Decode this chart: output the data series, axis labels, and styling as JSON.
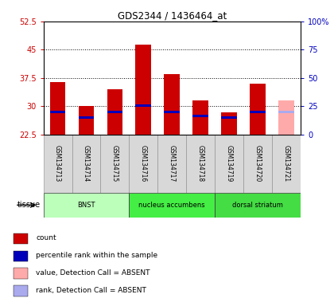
{
  "title": "GDS2344 / 1436464_at",
  "samples": [
    "GSM134713",
    "GSM134714",
    "GSM134715",
    "GSM134716",
    "GSM134717",
    "GSM134718",
    "GSM134719",
    "GSM134720",
    "GSM134721"
  ],
  "count_values": [
    36.5,
    30.1,
    34.5,
    46.3,
    38.5,
    31.5,
    28.5,
    36.0,
    null
  ],
  "rank_values": [
    28.5,
    27.0,
    28.5,
    30.2,
    28.5,
    27.5,
    27.0,
    28.5,
    null
  ],
  "absent_value": [
    null,
    null,
    null,
    null,
    null,
    null,
    null,
    null,
    31.5
  ],
  "absent_rank": [
    null,
    null,
    null,
    null,
    null,
    null,
    null,
    null,
    28.5
  ],
  "ylim_left": [
    22.5,
    52.5
  ],
  "yticks_left": [
    22.5,
    30,
    37.5,
    45,
    52.5
  ],
  "yticks_right": [
    0,
    25,
    50,
    75,
    100
  ],
  "ytick_labels_left": [
    "22.5",
    "30",
    "37.5",
    "45",
    "52.5"
  ],
  "ytick_labels_right": [
    "0",
    "25",
    "50",
    "75",
    "100%"
  ],
  "tissue_groups": [
    {
      "label": "BNST",
      "start": 0,
      "end": 3,
      "color": "#bbffbb"
    },
    {
      "label": "nucleus accumbens",
      "start": 3,
      "end": 6,
      "color": "#44ee44"
    },
    {
      "label": "dorsal striatum",
      "start": 6,
      "end": 9,
      "color": "#44dd44"
    }
  ],
  "bar_color_present": "#cc0000",
  "bar_color_absent": "#ffaaaa",
  "rank_color_present": "#0000bb",
  "rank_color_absent": "#aaaaee",
  "bar_width": 0.55,
  "rank_bar_height": 0.6,
  "bg_color": "#ffffff",
  "plot_bg": "#ffffff",
  "grid_color": "#000000",
  "left_tick_color": "#cc0000",
  "right_tick_color": "#0000bb",
  "tissue_label": "tissue",
  "legend_items": [
    {
      "color": "#cc0000",
      "label": "count"
    },
    {
      "color": "#0000bb",
      "label": "percentile rank within the sample"
    },
    {
      "color": "#ffaaaa",
      "label": "value, Detection Call = ABSENT"
    },
    {
      "color": "#aaaaee",
      "label": "rank, Detection Call = ABSENT"
    }
  ]
}
